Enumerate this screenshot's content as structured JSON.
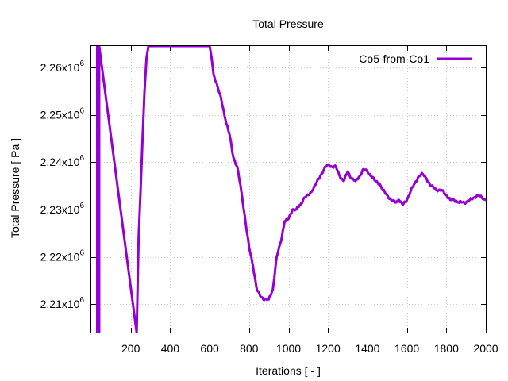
{
  "chart_data": {
    "type": "line",
    "title": "Total Pressure",
    "xlabel": "Iterations [ - ]",
    "ylabel": "Total Pressure [ Pa ]",
    "xlim": [
      0,
      2000
    ],
    "ylim": [
      2204000,
      2264500
    ],
    "grid": true,
    "x_ticks": [
      200,
      400,
      600,
      800,
      1000,
      1200,
      1400,
      1600,
      1800,
      2000
    ],
    "x_tick_labels": [
      "200",
      "400",
      "600",
      "800",
      "1000",
      "1200",
      "1400",
      "1600",
      "1800",
      "2000"
    ],
    "y_ticks": [
      {
        "value": 2210000,
        "mantissa": "2.21x10",
        "exponent": "6"
      },
      {
        "value": 2220000,
        "mantissa": "2.22x10",
        "exponent": "6"
      },
      {
        "value": 2230000,
        "mantissa": "2.23x10",
        "exponent": "6"
      },
      {
        "value": 2240000,
        "mantissa": "2.24x10",
        "exponent": "6"
      },
      {
        "value": 2250000,
        "mantissa": "2.25x10",
        "exponent": "6"
      },
      {
        "value": 2260000,
        "mantissa": "2.26x10",
        "exponent": "6"
      }
    ],
    "legend": {
      "position": "top-right"
    },
    "series": [
      {
        "name": "Co5-from-Co1",
        "color": "#9400d3",
        "x": [
          30,
          30,
          35,
          35,
          40,
          40,
          230,
          240,
          250,
          260,
          270,
          280,
          290,
          600,
          610,
          620,
          640,
          660,
          680,
          700,
          720,
          740,
          760,
          780,
          800,
          820,
          840,
          860,
          880,
          900,
          920,
          940,
          960,
          980,
          1000,
          1020,
          1040,
          1060,
          1080,
          1100,
          1120,
          1140,
          1160,
          1180,
          1200,
          1220,
          1240,
          1260,
          1280,
          1300,
          1320,
          1340,
          1360,
          1380,
          1400,
          1420,
          1440,
          1460,
          1480,
          1500,
          1520,
          1540,
          1560,
          1580,
          1600,
          1620,
          1640,
          1660,
          1680,
          1700,
          1720,
          1740,
          1760,
          1780,
          1800,
          1820,
          1840,
          1860,
          1880,
          1900,
          1920,
          1940,
          1960,
          1980,
          2000
        ],
        "values": [
          2204000,
          2264500,
          2264500,
          2204000,
          2204000,
          2264500,
          2204000,
          2224000,
          2234000,
          2245000,
          2255000,
          2262000,
          2264500,
          2264500,
          2262000,
          2258500,
          2256000,
          2253000,
          2249000,
          2246000,
          2241000,
          2239000,
          2234000,
          2228000,
          2222000,
          2218000,
          2213000,
          2211500,
          2211000,
          2211000,
          2213000,
          2220000,
          2223000,
          2227500,
          2228000,
          2230000,
          2230000,
          2231000,
          2232500,
          2233000,
          2234000,
          2235500,
          2237000,
          2238500,
          2239500,
          2239000,
          2239000,
          2237000,
          2236000,
          2238000,
          2236500,
          2236000,
          2237000,
          2238500,
          2238000,
          2237000,
          2236000,
          2235500,
          2234000,
          2233000,
          2232000,
          2231500,
          2232000,
          2231000,
          2232000,
          2234000,
          2235500,
          2237000,
          2237500,
          2236500,
          2235000,
          2234500,
          2234000,
          2234000,
          2233000,
          2232000,
          2232000,
          2231500,
          2231500,
          2231500,
          2232000,
          2232500,
          2233000,
          2232500,
          2232000
        ]
      }
    ]
  }
}
